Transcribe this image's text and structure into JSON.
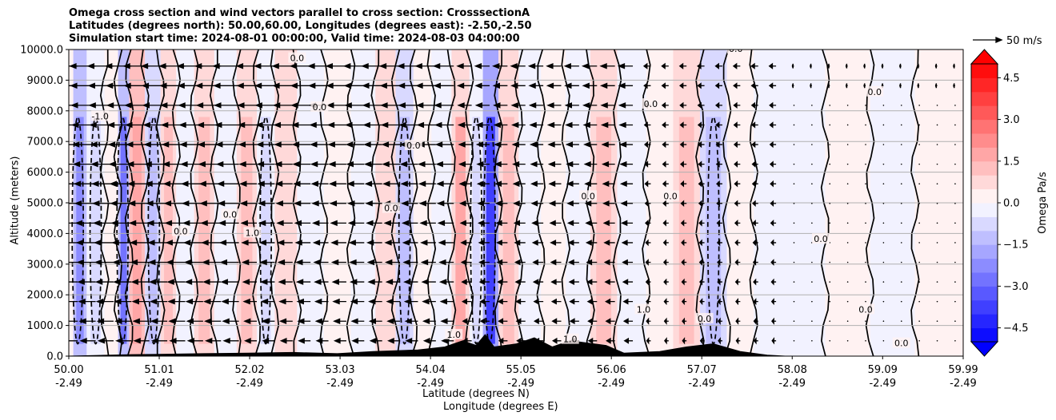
{
  "chart_data": {
    "type": "contour-cross-section",
    "title_lines": [
      "Omega cross section and wind vectors parallel to cross section: CrosssectionA",
      "Latitudes (degrees north): 50.00,60.00, Longitudes (degrees east): -2.50,-2.50",
      "Simulation start time: 2024-08-01 00:00:00, Valid time: 2024-08-03 04:00:00"
    ],
    "ylabel": "Altitude (meters)",
    "xlabel_lat": "Latitude (degrees N)",
    "xlabel_lon": "Longitude (degrees E)",
    "ylim": [
      0,
      10000
    ],
    "y_ticks": [
      0,
      1000,
      2000,
      3000,
      4000,
      5000,
      6000,
      7000,
      8000,
      9000,
      10000
    ],
    "y_tick_labels": [
      "0.0",
      "1000.0",
      "2000.0",
      "3000.0",
      "4000.0",
      "5000.0",
      "6000.0",
      "7000.0",
      "8000.0",
      "9000.0",
      "10000.0"
    ],
    "x_ticks": [
      {
        "lat": "50.00",
        "lon": "-2.49"
      },
      {
        "lat": "51.01",
        "lon": "-2.49"
      },
      {
        "lat": "52.02",
        "lon": "-2.49"
      },
      {
        "lat": "53.03",
        "lon": "-2.49"
      },
      {
        "lat": "54.04",
        "lon": "-2.49"
      },
      {
        "lat": "55.05",
        "lon": "-2.49"
      },
      {
        "lat": "56.06",
        "lon": "-2.49"
      },
      {
        "lat": "57.07",
        "lon": "-2.49"
      },
      {
        "lat": "58.08",
        "lon": "-2.49"
      },
      {
        "lat": "59.09",
        "lon": "-2.49"
      },
      {
        "lat": "59.99",
        "lon": "-2.49"
      }
    ],
    "xlim": [
      50.0,
      59.99
    ],
    "grid": "horizontal",
    "colorbar": {
      "label": "Omega Pa/s",
      "range": [
        -5.0,
        5.0
      ],
      "ticks": [
        4.5,
        3.0,
        1.5,
        0.0,
        -1.5,
        -3.0,
        -4.5
      ],
      "tick_labels": [
        "4.5",
        "3.0",
        "1.5",
        "0.0",
        "−1.5",
        "−3.0",
        "−4.5"
      ],
      "levels": 20,
      "extend": "both",
      "colormap": "bwr"
    },
    "quiver_key": {
      "label": "50 m/s",
      "speed": 50
    },
    "omega_bands": [
      {
        "lat": 50.1,
        "v": -1.2
      },
      {
        "lat": 50.3,
        "v": -0.5
      },
      {
        "lat": 50.5,
        "v": 0.4
      },
      {
        "lat": 50.6,
        "v": -1.5
      },
      {
        "lat": 50.75,
        "v": 1.0
      },
      {
        "lat": 50.95,
        "v": -0.6
      },
      {
        "lat": 51.1,
        "v": 0.8
      },
      {
        "lat": 51.3,
        "v": -0.4
      },
      {
        "lat": 51.5,
        "v": 0.6
      },
      {
        "lat": 51.75,
        "v": -0.3
      },
      {
        "lat": 52.0,
        "v": 0.8
      },
      {
        "lat": 52.2,
        "v": -0.5
      },
      {
        "lat": 52.4,
        "v": 0.5
      },
      {
        "lat": 52.7,
        "v": -0.3
      },
      {
        "lat": 53.0,
        "v": 0.3
      },
      {
        "lat": 53.3,
        "v": -0.4
      },
      {
        "lat": 53.55,
        "v": 0.5
      },
      {
        "lat": 53.75,
        "v": -0.7
      },
      {
        "lat": 53.95,
        "v": 0.3
      },
      {
        "lat": 54.15,
        "v": -0.4
      },
      {
        "lat": 54.4,
        "v": 0.9
      },
      {
        "lat": 54.55,
        "v": -0.5
      },
      {
        "lat": 54.7,
        "v": -2.0
      },
      {
        "lat": 54.9,
        "v": 0.6
      },
      {
        "lat": 55.15,
        "v": -0.3
      },
      {
        "lat": 55.4,
        "v": 0.4
      },
      {
        "lat": 55.7,
        "v": -0.3
      },
      {
        "lat": 55.95,
        "v": 0.7
      },
      {
        "lat": 56.3,
        "v": -0.3
      },
      {
        "lat": 56.6,
        "v": 0.4
      },
      {
        "lat": 56.9,
        "v": 0.6
      },
      {
        "lat": 57.2,
        "v": -0.6
      },
      {
        "lat": 57.5,
        "v": 0.2
      },
      {
        "lat": 57.8,
        "v": -0.2
      },
      {
        "lat": 58.2,
        "v": -0.15
      },
      {
        "lat": 58.7,
        "v": 0.15
      },
      {
        "lat": 59.2,
        "v": -0.1
      },
      {
        "lat": 59.7,
        "v": 0.1
      }
    ],
    "terrain": [
      {
        "lat": 50.0,
        "alt": 0
      },
      {
        "lat": 50.7,
        "alt": 50
      },
      {
        "lat": 51.0,
        "alt": 60
      },
      {
        "lat": 51.5,
        "alt": 80
      },
      {
        "lat": 52.0,
        "alt": 100
      },
      {
        "lat": 52.5,
        "alt": 120
      },
      {
        "lat": 53.0,
        "alt": 80
      },
      {
        "lat": 53.4,
        "alt": 150
      },
      {
        "lat": 53.9,
        "alt": 200
      },
      {
        "lat": 54.2,
        "alt": 300
      },
      {
        "lat": 54.4,
        "alt": 500
      },
      {
        "lat": 54.55,
        "alt": 350
      },
      {
        "lat": 54.65,
        "alt": 700
      },
      {
        "lat": 54.75,
        "alt": 300
      },
      {
        "lat": 55.0,
        "alt": 400
      },
      {
        "lat": 55.2,
        "alt": 600
      },
      {
        "lat": 55.4,
        "alt": 300
      },
      {
        "lat": 55.6,
        "alt": 500
      },
      {
        "lat": 56.0,
        "alt": 350
      },
      {
        "lat": 56.2,
        "alt": 100
      },
      {
        "lat": 56.6,
        "alt": 150
      },
      {
        "lat": 56.9,
        "alt": 300
      },
      {
        "lat": 57.2,
        "alt": 400
      },
      {
        "lat": 57.5,
        "alt": 150
      },
      {
        "lat": 57.8,
        "alt": 30
      },
      {
        "lat": 58.0,
        "alt": 0
      }
    ],
    "wind_field": [
      {
        "lat_from": 50.0,
        "lat_to": 52.0,
        "u": -45
      },
      {
        "lat_from": 52.0,
        "lat_to": 54.5,
        "u": -35
      },
      {
        "lat_from": 54.5,
        "lat_to": 56.5,
        "u": -25
      },
      {
        "lat_from": 56.5,
        "lat_to": 58.0,
        "u": -12
      },
      {
        "lat_from": 58.0,
        "lat_to": 59.99,
        "u": -3
      }
    ],
    "contour_labels": [
      {
        "text": "0.0",
        "lat": 51.25,
        "alt": 4050
      },
      {
        "text": "0.0",
        "lat": 53.85,
        "alt": 6850
      },
      {
        "text": "0.0",
        "lat": 58.4,
        "alt": 3800
      },
      {
        "text": "0.0",
        "lat": 52.8,
        "alt": 8100
      },
      {
        "text": "0.0",
        "lat": 55.8,
        "alt": 5200
      },
      {
        "text": "0.0",
        "lat": 57.45,
        "alt": 10000
      },
      {
        "text": "1.0",
        "lat": 56.42,
        "alt": 1500
      },
      {
        "text": "1.0",
        "lat": 52.05,
        "alt": 4000
      },
      {
        "text": "1.0",
        "lat": 54.3,
        "alt": 680
      },
      {
        "text": "1.0",
        "lat": 55.6,
        "alt": 530
      },
      {
        "text": "0.0",
        "lat": 53.6,
        "alt": 4800
      },
      {
        "text": "0.0",
        "lat": 59.0,
        "alt": 8600
      },
      {
        "text": "0.0",
        "lat": 56.72,
        "alt": 5200
      },
      {
        "text": "-1.0",
        "lat": 50.35,
        "alt": 7800
      },
      {
        "text": "0.0",
        "lat": 57.1,
        "alt": 1200
      },
      {
        "text": "0.0",
        "lat": 58.9,
        "alt": 1500
      },
      {
        "text": "0.0",
        "lat": 51.8,
        "alt": 4600
      },
      {
        "text": "0.0",
        "lat": 56.5,
        "alt": 8200
      },
      {
        "text": "0.0",
        "lat": 59.3,
        "alt": 400
      },
      {
        "text": "0.0",
        "lat": 52.55,
        "alt": 9700
      }
    ]
  }
}
